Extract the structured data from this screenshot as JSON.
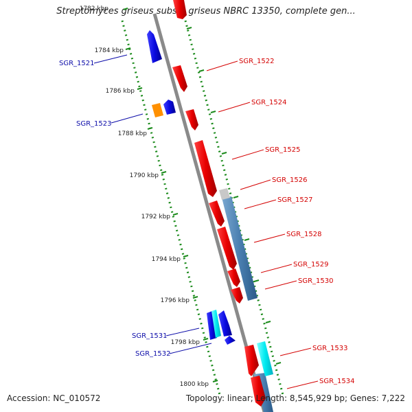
{
  "title": "Streptomyces griseus subsp. griseus NBRC 13350, complete gen...",
  "footer": {
    "accession": "Accession: NC_010572",
    "stats": "Topology: linear; Length: 8,545,929 bp; Genes: 7,222"
  },
  "scale": {
    "ticks": [
      "1782 kbp",
      "1784 kbp",
      "1786 kbp",
      "1788 kbp",
      "1790 kbp",
      "1792 kbp",
      "1794 kbp",
      "1796 kbp",
      "1798 kbp",
      "1800 kbp"
    ]
  },
  "genes_left": [
    {
      "label": "SGR_1521"
    },
    {
      "label": "SGR_1523"
    },
    {
      "label": "SGR_1531"
    },
    {
      "label": "SGR_1532"
    }
  ],
  "genes_right": [
    {
      "label": "SGR_1522"
    },
    {
      "label": "SGR_1524"
    },
    {
      "label": "SGR_1525"
    },
    {
      "label": "SGR_1526"
    },
    {
      "label": "SGR_1527"
    },
    {
      "label": "SGR_1528"
    },
    {
      "label": "SGR_1529"
    },
    {
      "label": "SGR_1530"
    },
    {
      "label": "SGR_1533"
    },
    {
      "label": "SGR_1534"
    }
  ],
  "colors": {
    "forward_gene": "#e00000",
    "reverse_gene": "#0a0ae0",
    "operon_bar": "#4a7fb0",
    "cyan_gene": "#00e8ee",
    "orange_gene": "#ff9000",
    "gray_gene": "#c8c8c8",
    "track_dots": "#1a8a1a",
    "backbone": "#8a8a8a",
    "label_left": "#0a0aa8",
    "label_right": "#d40000"
  }
}
